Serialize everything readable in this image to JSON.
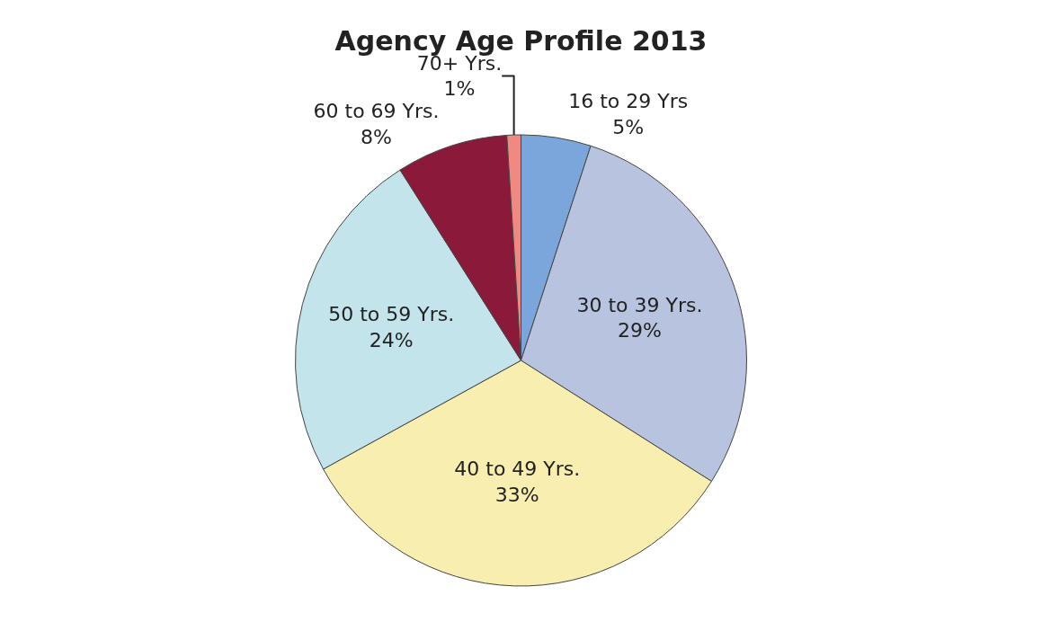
{
  "chart_data": {
    "type": "pie",
    "title": "Agency Age Profile 2013",
    "categories": [
      "16 to 29 Yrs",
      "30 to 39 Yrs.",
      "40 to 49 Yrs.",
      "50 to 59 Yrs.",
      "60 to 69 Yrs.",
      "70+ Yrs."
    ],
    "values": [
      5,
      29,
      33,
      24,
      8,
      1
    ],
    "value_labels": [
      "5%",
      "29%",
      "33%",
      "24%",
      "8%",
      "1%"
    ],
    "colors": [
      "#7aa6dc",
      "#b8c4df",
      "#f8eeb0",
      "#c2e4ea",
      "#8b1a3a",
      "#f08a80"
    ],
    "legend": false
  }
}
